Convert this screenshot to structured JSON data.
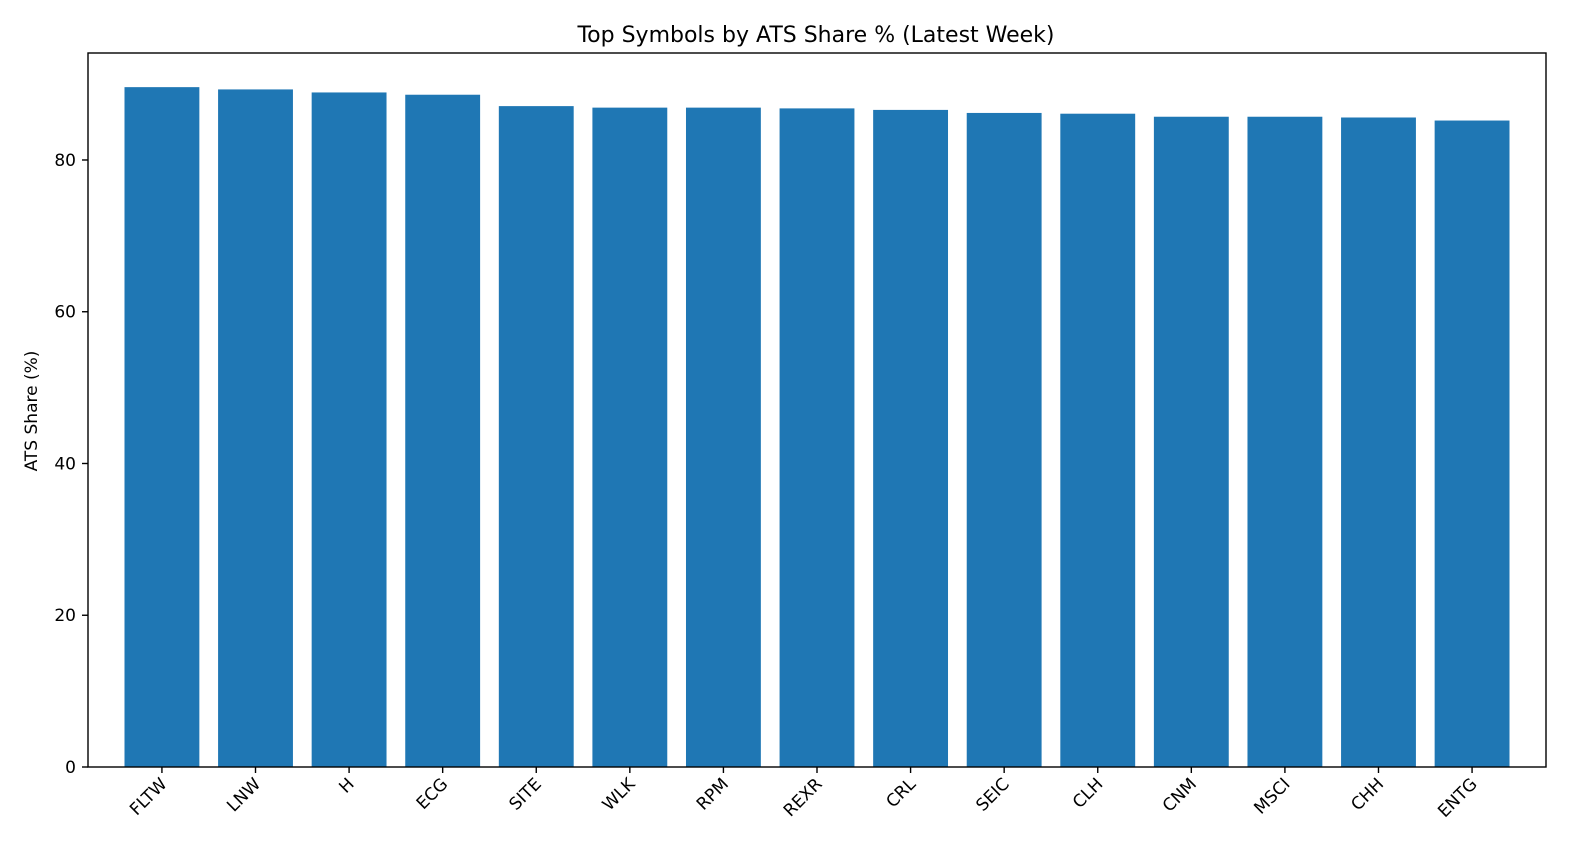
{
  "chart_data": {
    "type": "bar",
    "title": "Top Symbols by ATS Share % (Latest Week)",
    "xlabel": "",
    "ylabel": "ATS Share (%)",
    "categories": [
      "FLTW",
      "LNW",
      "H",
      "ECG",
      "SITE",
      "WLK",
      "RPM",
      "REXR",
      "CRL",
      "SEIC",
      "CLH",
      "CNM",
      "MSCI",
      "CHH",
      "ENTG"
    ],
    "values": [
      89.6,
      89.3,
      88.9,
      88.6,
      87.1,
      86.9,
      86.9,
      86.8,
      86.6,
      86.2,
      86.1,
      85.7,
      85.7,
      85.6,
      85.2
    ],
    "ylim": [
      0,
      94.1
    ],
    "yticks": [
      0,
      20,
      40,
      60,
      80
    ],
    "ytick_labels": [
      "0",
      "20",
      "40",
      "60",
      "80"
    ],
    "bar_color": "#1f77b4",
    "grid": false,
    "legend": "none"
  }
}
